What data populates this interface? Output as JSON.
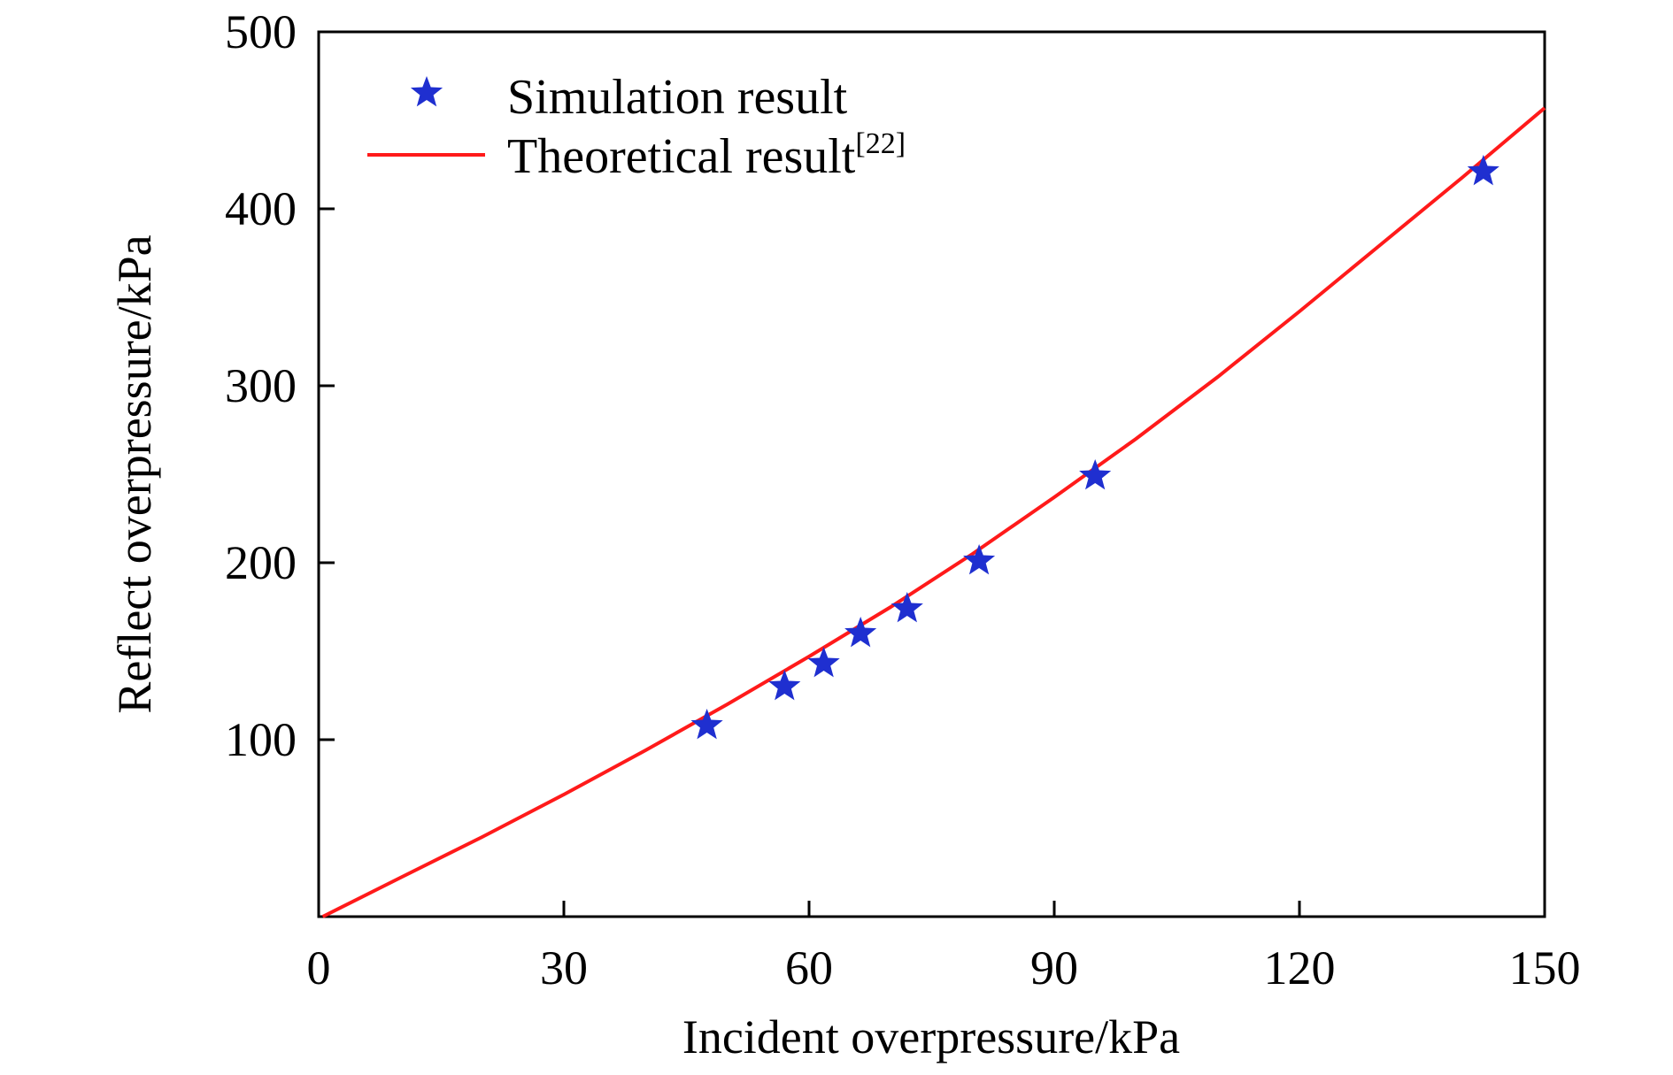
{
  "chart_data": {
    "type": "scatter",
    "xlabel": "Incident overpressure/kPa",
    "ylabel": "Reflect overpressure/kPa",
    "xlim": [
      0,
      150
    ],
    "ylim": [
      0,
      500
    ],
    "x_ticks": [
      0,
      30,
      60,
      90,
      120,
      150
    ],
    "y_ticks": [
      100,
      200,
      300,
      400,
      500
    ],
    "grid": false,
    "legend_position": "top-left",
    "series": [
      {
        "name": "Simulation result",
        "kind": "scatter",
        "marker": "star",
        "color": "#1f2fd0",
        "points": [
          {
            "x": 47.5,
            "y": 108
          },
          {
            "x": 57,
            "y": 130
          },
          {
            "x": 61.8,
            "y": 143
          },
          {
            "x": 66.3,
            "y": 160
          },
          {
            "x": 72,
            "y": 174
          },
          {
            "x": 80.8,
            "y": 201
          },
          {
            "x": 95,
            "y": 249
          },
          {
            "x": 142.5,
            "y": 421
          }
        ]
      },
      {
        "name": "Theoretical result",
        "name_superscript": "[22]",
        "kind": "line",
        "color": "#ff1a1a",
        "points": [
          {
            "x": 0.5,
            "y": 0
          },
          {
            "x": 10,
            "y": 22
          },
          {
            "x": 20,
            "y": 45
          },
          {
            "x": 30,
            "y": 69
          },
          {
            "x": 40,
            "y": 94
          },
          {
            "x": 50,
            "y": 120
          },
          {
            "x": 60,
            "y": 147
          },
          {
            "x": 70,
            "y": 175
          },
          {
            "x": 80,
            "y": 205
          },
          {
            "x": 90,
            "y": 237
          },
          {
            "x": 100,
            "y": 270
          },
          {
            "x": 110,
            "y": 305
          },
          {
            "x": 120,
            "y": 342
          },
          {
            "x": 130,
            "y": 380
          },
          {
            "x": 140,
            "y": 418
          },
          {
            "x": 150,
            "y": 457
          }
        ]
      }
    ]
  }
}
